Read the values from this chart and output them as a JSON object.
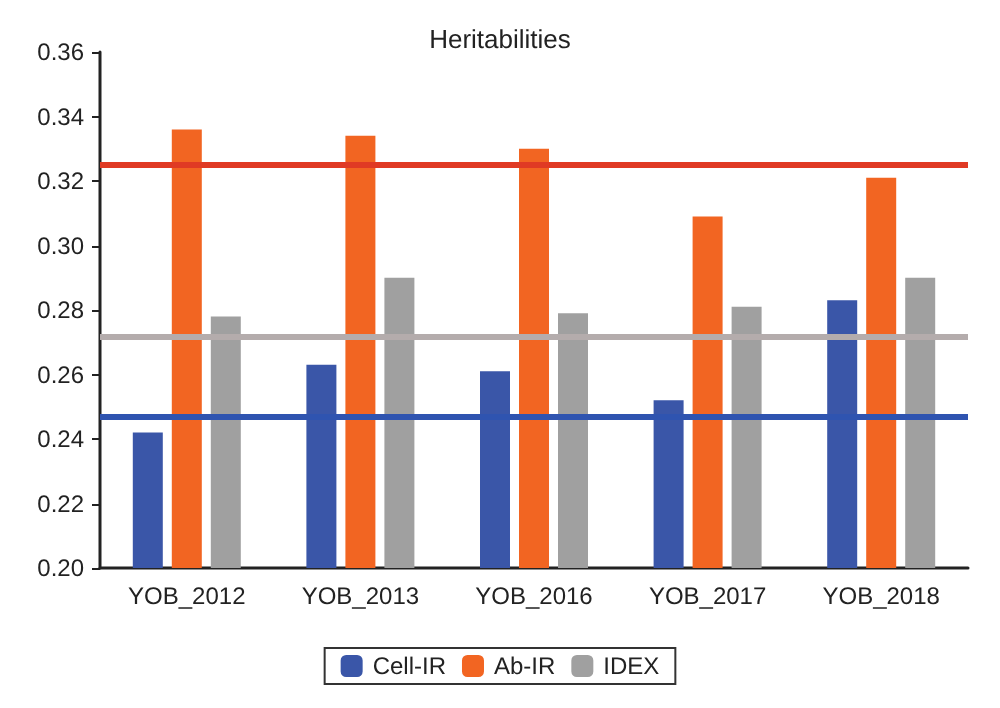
{
  "chart_data": {
    "type": "bar",
    "title": "Heritabilities",
    "categories": [
      "YOB_2012",
      "YOB_2013",
      "YOB_2016",
      "YOB_2017",
      "YOB_2018"
    ],
    "series": [
      {
        "name": "Cell-IR",
        "color": "#3a56a8",
        "values": [
          0.242,
          0.263,
          0.261,
          0.252,
          0.283
        ]
      },
      {
        "name": "Ab-IR",
        "color": "#f26522",
        "values": [
          0.336,
          0.334,
          0.33,
          0.309,
          0.321
        ]
      },
      {
        "name": "IDEX",
        "color": "#a0a0a0",
        "values": [
          0.278,
          0.29,
          0.279,
          0.281,
          0.29
        ]
      }
    ],
    "ylim": [
      0.2,
      0.36
    ],
    "yticks": [
      {
        "value": 0.2,
        "label": "0.20"
      },
      {
        "value": 0.22,
        "label": "0.22"
      },
      {
        "value": 0.24,
        "label": "0.24"
      },
      {
        "value": 0.26,
        "label": "0.26"
      },
      {
        "value": 0.28,
        "label": "0.28"
      },
      {
        "value": 0.3,
        "label": "0.30"
      },
      {
        "value": 0.32,
        "label": "0.32"
      },
      {
        "value": 0.34,
        "label": "0.34"
      },
      {
        "value": 0.36,
        "label": "0.36"
      }
    ],
    "ref_lines": [
      {
        "axis": "y",
        "value": 0.325,
        "color": "#e03a24"
      },
      {
        "axis": "y",
        "value": 0.272,
        "color": "#b4acac"
      },
      {
        "axis": "y",
        "value": 0.247,
        "color": "#2f54b0"
      }
    ],
    "grid": false,
    "legend": "bottom"
  }
}
